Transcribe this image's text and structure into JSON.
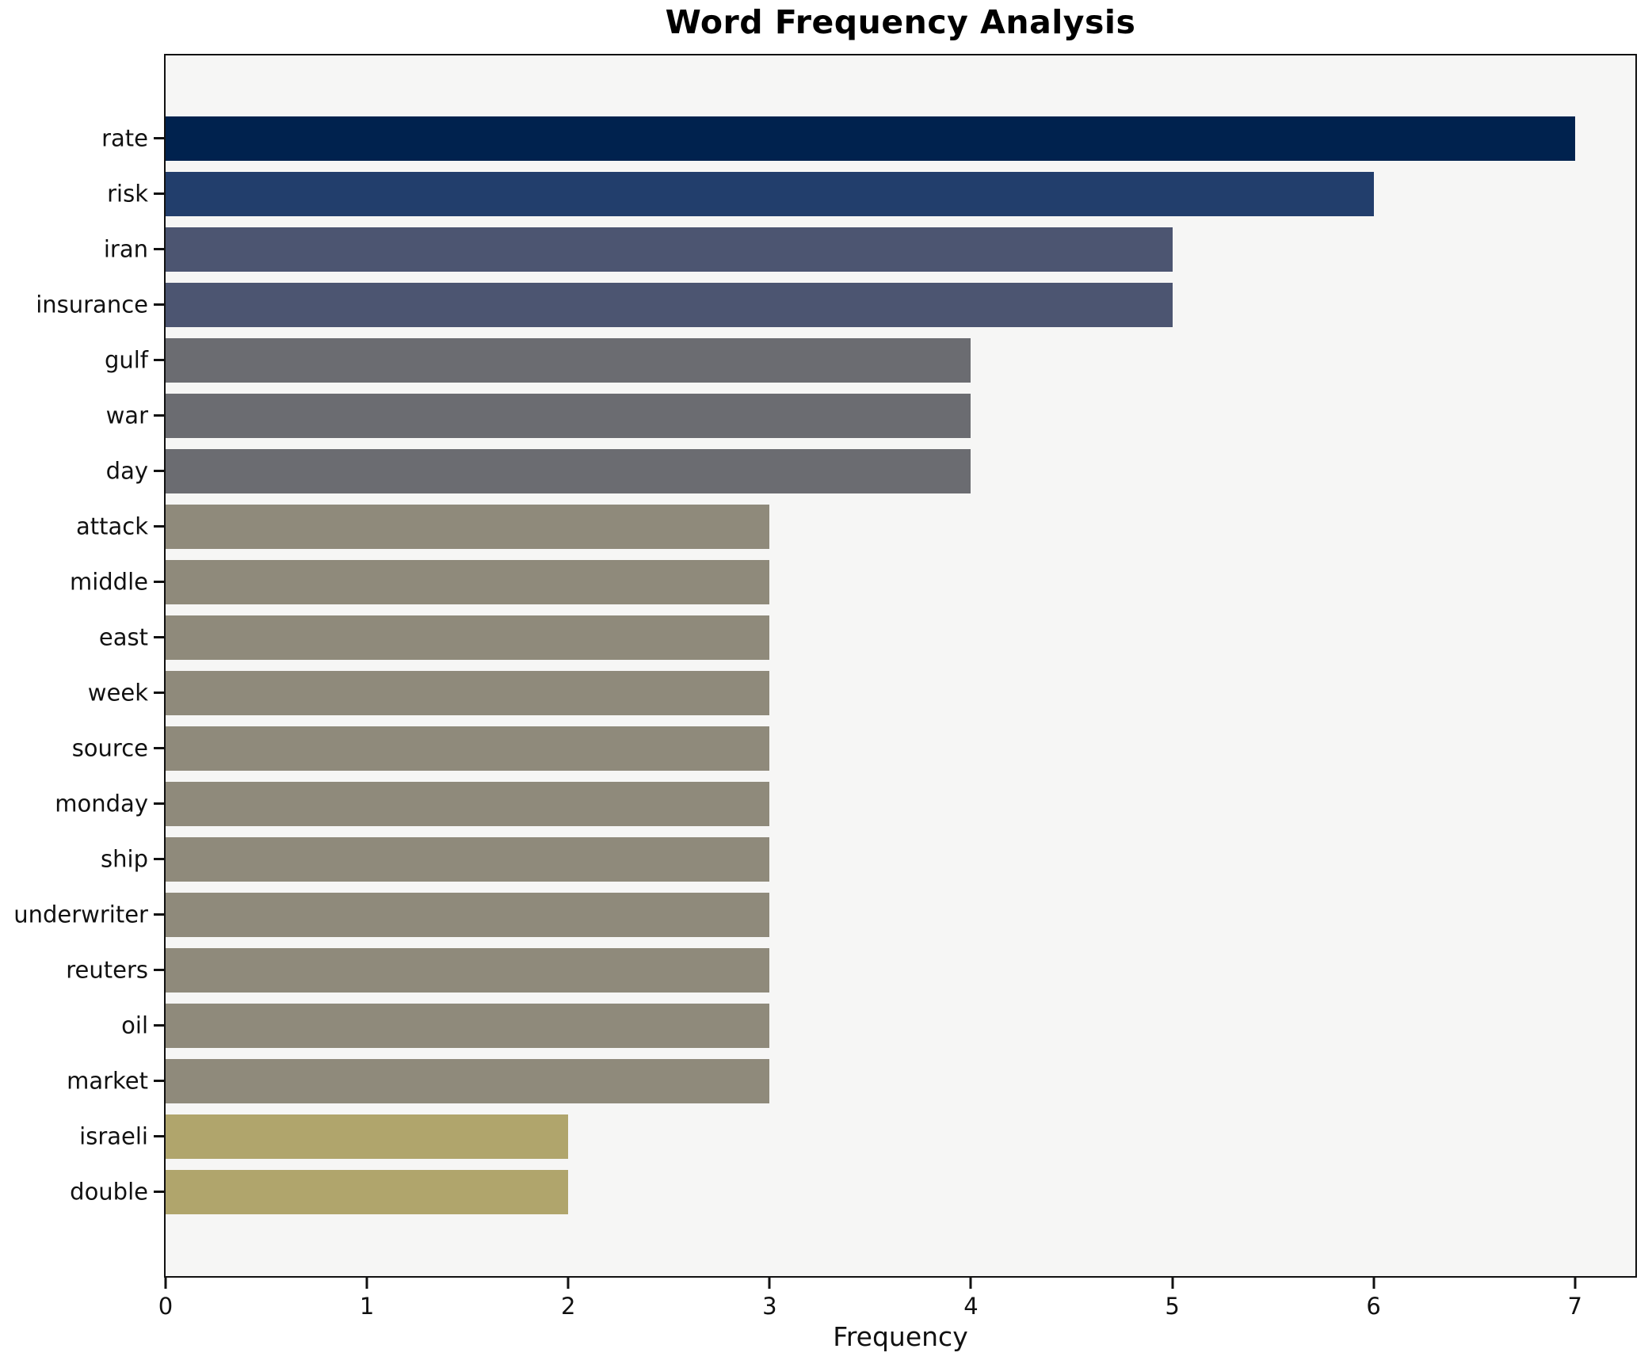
{
  "title": "Word Frequency Analysis",
  "chart_data": {
    "type": "bar",
    "orientation": "horizontal",
    "title": "Word Frequency Analysis",
    "xlabel": "Frequency",
    "ylabel": "",
    "categories": [
      "rate",
      "risk",
      "iran",
      "insurance",
      "gulf",
      "war",
      "day",
      "attack",
      "middle",
      "east",
      "week",
      "source",
      "monday",
      "ship",
      "underwriter",
      "reuters",
      "oil",
      "market",
      "israeli",
      "double"
    ],
    "values": [
      7,
      6,
      5,
      5,
      4,
      4,
      4,
      3,
      3,
      3,
      3,
      3,
      3,
      3,
      3,
      3,
      3,
      3,
      2,
      2
    ],
    "colors": [
      "#00224e",
      "#223e6c",
      "#4c5571",
      "#4c5571",
      "#6b6c71",
      "#6b6c71",
      "#6b6c71",
      "#8f8a7b",
      "#8f8a7b",
      "#8f8a7b",
      "#8f8a7b",
      "#8f8a7b",
      "#8f8a7b",
      "#8f8a7b",
      "#8f8a7b",
      "#8f8a7b",
      "#8f8a7b",
      "#8f8a7b",
      "#b0a56c",
      "#b0a56c"
    ],
    "value_colors": {
      "7": "#00224e",
      "6": "#223e6c",
      "5": "#4c5571",
      "4": "#6b6c71",
      "3": "#8f8a7b",
      "2": "#b0a56c"
    },
    "x_ticks": [
      0,
      1,
      2,
      3,
      4,
      5,
      6,
      7
    ],
    "xlim": [
      0,
      7.3
    ],
    "grid": false,
    "legend": null,
    "plot_background": "#f6f6f5",
    "figure_background": "#ffffff",
    "spine_color": "#111111"
  }
}
